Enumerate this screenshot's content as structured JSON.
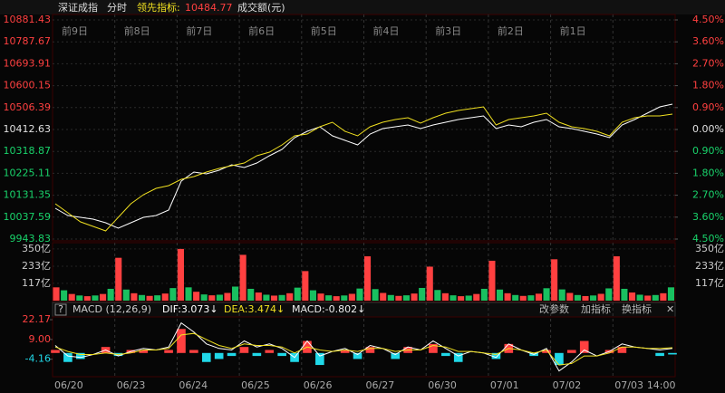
{
  "header": {
    "index_name": "深证成指",
    "mode": "分时",
    "lead_label": "领先指标:",
    "lead_value": "10484.77",
    "volume_label": "成交额(元)"
  },
  "day_labels": [
    "前9日",
    "前8日",
    "前7日",
    "前6日",
    "前5日",
    "前4日",
    "前3日",
    "前2日",
    "前1日"
  ],
  "x_labels": [
    "06/20",
    "06/23",
    "06/24",
    "06/25",
    "06/26",
    "06/27",
    "06/30",
    "07/01",
    "07/02",
    "07/03",
    "14:00"
  ],
  "macd_bar": {
    "help": "?",
    "name": "MACD (12,26,9)",
    "dif": "DIF:3.073↓",
    "dea": "DEA:3.474↓",
    "macd": "MACD:-0.802↓",
    "buttons": [
      "改参数",
      "加指标",
      "换指标"
    ],
    "close": "✕"
  },
  "chart_data": [
    {
      "type": "line",
      "ylim": [
        9943.83,
        10881.43
      ],
      "yticks": [
        10881.43,
        10787.67,
        10693.91,
        10600.15,
        10506.39,
        10412.63,
        10318.87,
        10225.11,
        10131.35,
        10037.59,
        9943.83
      ],
      "y2lim": [
        -4.5,
        4.5
      ],
      "y2ticks": [
        {
          "value": 4.5,
          "label": "4.50%"
        },
        {
          "value": 3.6,
          "label": "3.60%"
        },
        {
          "value": 2.7,
          "label": "2.70%"
        },
        {
          "value": 1.8,
          "label": "1.80%"
        },
        {
          "value": 0.9,
          "label": "0.90%"
        },
        {
          "value": 0,
          "label": "0.00%"
        },
        {
          "value": -0.9,
          "label": "0.90%"
        },
        {
          "value": -1.8,
          "label": "1.80%"
        },
        {
          "value": -2.7,
          "label": "2.70%"
        },
        {
          "value": -3.6,
          "label": "3.60%"
        },
        {
          "value": -4.5,
          "label": "4.50%"
        }
      ],
      "up_color": "#ff4040",
      "down_color": "#19d36b",
      "flat_color": "#e0e0e0",
      "grid": true,
      "series": [
        {
          "color": "#ffffff",
          "values": [
            10075.7,
            10044.7,
            10036.9,
            10029.2,
            10013.7,
            9990.5,
            10013.7,
            10036.9,
            10044.7,
            10067.9,
            10191.9,
            10230.6,
            10222.9,
            10238.4,
            10261.6,
            10250.0,
            10269.4,
            10300.4,
            10327.5,
            10377.9,
            10405.0,
            10424.3,
            10385.6,
            10366.2,
            10346.9,
            10393.3,
            10416.6,
            10424.3,
            10432.1,
            10416.6,
            10432.1,
            10443.7,
            10455.3,
            10463.1,
            10470.8,
            10416.6,
            10432.1,
            10424.3,
            10443.7,
            10455.3,
            10424.3,
            10416.6,
            10405.0,
            10393.3,
            10377.9,
            10432.1,
            10455.3,
            10482.4,
            10509.6,
            10521.2
          ]
        },
        {
          "color": "#f0e020",
          "values": [
            10095.0,
            10056.3,
            10017.6,
            9998.2,
            9978.8,
            10036.9,
            10095.0,
            10133.8,
            10160.9,
            10172.5,
            10199.6,
            10211.3,
            10230.6,
            10246.1,
            10257.8,
            10269.4,
            10300.4,
            10315.9,
            10346.9,
            10385.6,
            10393.3,
            10424.3,
            10443.7,
            10405.0,
            10385.6,
            10424.3,
            10443.7,
            10455.3,
            10463.1,
            10439.8,
            10463.1,
            10482.4,
            10494.1,
            10501.8,
            10509.6,
            10432.1,
            10455.3,
            10463.1,
            10470.8,
            10482.4,
            10443.7,
            10424.3,
            10416.6,
            10405.0,
            10385.6,
            10443.7,
            10463.1,
            10470.8,
            10470.8,
            10478.6
          ]
        }
      ]
    },
    {
      "type": "bar",
      "ylim": [
        0,
        380
      ],
      "yticks": [
        {
          "value": 350,
          "label": "350亿"
        },
        {
          "value": 233,
          "label": "233亿"
        },
        {
          "value": 117,
          "label": "117亿"
        }
      ],
      "colors": [
        "#ff4040",
        "#19c060"
      ],
      "values": [
        90,
        70,
        45,
        35,
        30,
        35,
        45,
        80,
        290,
        75,
        50,
        38,
        32,
        36,
        48,
        85,
        350,
        90,
        60,
        42,
        36,
        40,
        52,
        95,
        310,
        80,
        55,
        40,
        34,
        38,
        50,
        88,
        200,
        70,
        48,
        36,
        30,
        35,
        46,
        82,
        300,
        78,
        52,
        38,
        32,
        36,
        48,
        86,
        230,
        72,
        50,
        36,
        30,
        34,
        45,
        80,
        270,
        75,
        50,
        38,
        32,
        36,
        47,
        84,
        280,
        76,
        52,
        38,
        31,
        35,
        46,
        83,
        300,
        80,
        55,
        40,
        34,
        38,
        50,
        90
      ]
    },
    {
      "type": "macd",
      "ylim": [
        -15.8,
        24.0
      ],
      "yticks": [
        22.17,
        {
          "value": 9,
          "label": "9.00"
        },
        -4.16
      ],
      "bar_colors": [
        "#ff4040",
        "#20d8e8"
      ],
      "bars": [
        2,
        -6,
        -4,
        0,
        4,
        -2,
        2,
        2,
        0,
        2,
        16,
        2,
        -6,
        -4,
        -2,
        4,
        -2,
        2,
        -2,
        -6,
        8,
        -8,
        0,
        2,
        -4,
        4,
        0,
        -4,
        4,
        0,
        6,
        -2,
        -6,
        0,
        0,
        -4,
        6,
        0,
        -2,
        2,
        -8,
        2,
        8,
        0,
        2,
        4,
        0,
        0,
        -2,
        -1
      ],
      "series": [
        {
          "color": "#ffffff",
          "values": [
            5,
            -2,
            -3,
            -1,
            2,
            -2,
            1,
            3,
            2,
            4,
            20,
            14,
            6,
            3,
            2,
            8,
            4,
            6,
            3,
            -3,
            8,
            -2,
            1,
            3,
            -1,
            5,
            3,
            -1,
            4,
            2,
            8,
            3,
            -2,
            1,
            0,
            -3,
            6,
            2,
            -1,
            3,
            -12,
            -6,
            2,
            -2,
            1,
            6,
            4,
            3,
            2,
            3
          ]
        },
        {
          "color": "#f0e020",
          "values": [
            4,
            1,
            -1,
            -1,
            0,
            -1,
            0,
            2,
            2,
            3,
            12,
            13,
            9,
            5,
            3,
            6,
            5,
            5,
            4,
            0,
            4,
            2,
            1,
            2,
            1,
            3,
            3,
            1,
            2,
            2,
            5,
            4,
            1,
            1,
            0,
            -1,
            3,
            2,
            0,
            2,
            -8,
            -7,
            -2,
            -2,
            0,
            4,
            4,
            3,
            3,
            3.5
          ]
        }
      ]
    }
  ]
}
